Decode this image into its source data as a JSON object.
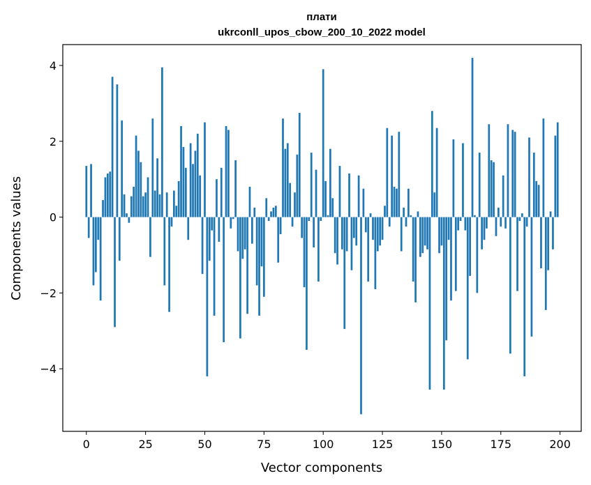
{
  "chart_data": {
    "type": "bar",
    "title": "плати",
    "subtitle": "ukrconll_upos_cbow_200_10_2022 model",
    "xlabel": "Vector components",
    "ylabel": "Components values",
    "xlim": [
      -9.95,
      208.95
    ],
    "ylim": [
      -5.65,
      4.55
    ],
    "xticks": [
      0,
      25,
      50,
      75,
      100,
      125,
      150,
      175,
      200
    ],
    "yticks": [
      -4,
      -2,
      0,
      2,
      4
    ],
    "grid": false,
    "legend": "none",
    "bar_color": "#1f77b4",
    "x": [
      0,
      1,
      2,
      3,
      4,
      5,
      6,
      7,
      8,
      9,
      10,
      11,
      12,
      13,
      14,
      15,
      16,
      17,
      18,
      19,
      20,
      21,
      22,
      23,
      24,
      25,
      26,
      27,
      28,
      29,
      30,
      31,
      32,
      33,
      34,
      35,
      36,
      37,
      38,
      39,
      40,
      41,
      42,
      43,
      44,
      45,
      46,
      47,
      48,
      49,
      50,
      51,
      52,
      53,
      54,
      55,
      56,
      57,
      58,
      59,
      60,
      61,
      62,
      63,
      64,
      65,
      66,
      67,
      68,
      69,
      70,
      71,
      72,
      73,
      74,
      75,
      76,
      77,
      78,
      79,
      80,
      81,
      82,
      83,
      84,
      85,
      86,
      87,
      88,
      89,
      90,
      91,
      92,
      93,
      94,
      95,
      96,
      97,
      98,
      99,
      100,
      101,
      102,
      103,
      104,
      105,
      106,
      107,
      108,
      109,
      110,
      111,
      112,
      113,
      114,
      115,
      116,
      117,
      118,
      119,
      120,
      121,
      122,
      123,
      124,
      125,
      126,
      127,
      128,
      129,
      130,
      131,
      132,
      133,
      134,
      135,
      136,
      137,
      138,
      139,
      140,
      141,
      142,
      143,
      144,
      145,
      146,
      147,
      148,
      149,
      150,
      151,
      152,
      153,
      154,
      155,
      156,
      157,
      158,
      159,
      160,
      161,
      162,
      163,
      164,
      165,
      166,
      167,
      168,
      169,
      170,
      171,
      172,
      173,
      174,
      175,
      176,
      177,
      178,
      179,
      180,
      181,
      182,
      183,
      184,
      185,
      186,
      187,
      188,
      189,
      190,
      191,
      192,
      193,
      194,
      195,
      196,
      197,
      198,
      199
    ],
    "values": [
      1.35,
      -0.55,
      1.4,
      -1.8,
      -1.45,
      -0.6,
      -2.2,
      0.45,
      1.05,
      1.15,
      1.2,
      3.7,
      -2.9,
      3.5,
      -1.15,
      2.55,
      0.6,
      0.1,
      -0.15,
      0.55,
      0.8,
      2.15,
      1.75,
      1.45,
      0.55,
      0.65,
      1.05,
      -1.05,
      2.6,
      0.7,
      1.55,
      0.6,
      3.95,
      -1.8,
      0.65,
      -2.5,
      -0.25,
      0.7,
      0.3,
      0.95,
      2.4,
      1.85,
      1.3,
      -0.6,
      1.95,
      1.4,
      1.75,
      2.2,
      1.1,
      -1.5,
      2.5,
      -4.2,
      -1.15,
      -0.35,
      -2.6,
      1.0,
      -0.65,
      1.3,
      -3.3,
      2.4,
      2.3,
      -0.3,
      -0.05,
      1.5,
      -0.9,
      -3.2,
      -1.1,
      -0.85,
      -2.55,
      0.8,
      -0.7,
      0.25,
      -1.8,
      -2.6,
      -1.3,
      -2.1,
      0.5,
      -0.1,
      0.15,
      0.25,
      0.3,
      -1.2,
      -0.45,
      2.6,
      1.8,
      1.95,
      0.9,
      -0.25,
      0.65,
      1.65,
      2.75,
      -0.55,
      -1.85,
      -3.5,
      -0.1,
      1.7,
      -0.8,
      1.25,
      -1.7,
      -0.1,
      3.9,
      0.95,
      0.05,
      1.8,
      0.5,
      -0.95,
      -1.25,
      1.35,
      -0.85,
      -2.95,
      -0.9,
      1.15,
      -1.4,
      -0.55,
      -0.75,
      1.1,
      -5.2,
      0.75,
      -0.4,
      -1.7,
      0.1,
      -0.6,
      -1.9,
      -0.9,
      -0.75,
      -0.6,
      0.3,
      2.35,
      -0.25,
      2.15,
      0.8,
      0.75,
      2.25,
      -0.9,
      0.25,
      -0.25,
      0.75,
      0.05,
      -1.7,
      -2.25,
      0.15,
      -1.05,
      -0.95,
      -0.75,
      -0.85,
      -4.55,
      2.8,
      0.65,
      2.35,
      -0.95,
      -0.75,
      -4.55,
      -3.25,
      -0.6,
      -2.2,
      2.05,
      -1.95,
      -0.35,
      -0.1,
      1.95,
      -0.35,
      -3.75,
      -1.55,
      4.2,
      0.05,
      -2.0,
      1.7,
      -0.85,
      -0.6,
      -0.3,
      2.45,
      1.5,
      1.45,
      -0.5,
      0.25,
      -0.25,
      1.1,
      -0.3,
      2.45,
      -3.6,
      2.3,
      2.25,
      -1.95,
      -0.1,
      0.1,
      -4.2,
      -0.25,
      2.1,
      -3.15,
      1.7,
      0.95,
      0.85,
      -1.35,
      2.6,
      -2.45,
      -1.4,
      0.15,
      -0.85,
      2.15,
      2.5
    ]
  }
}
